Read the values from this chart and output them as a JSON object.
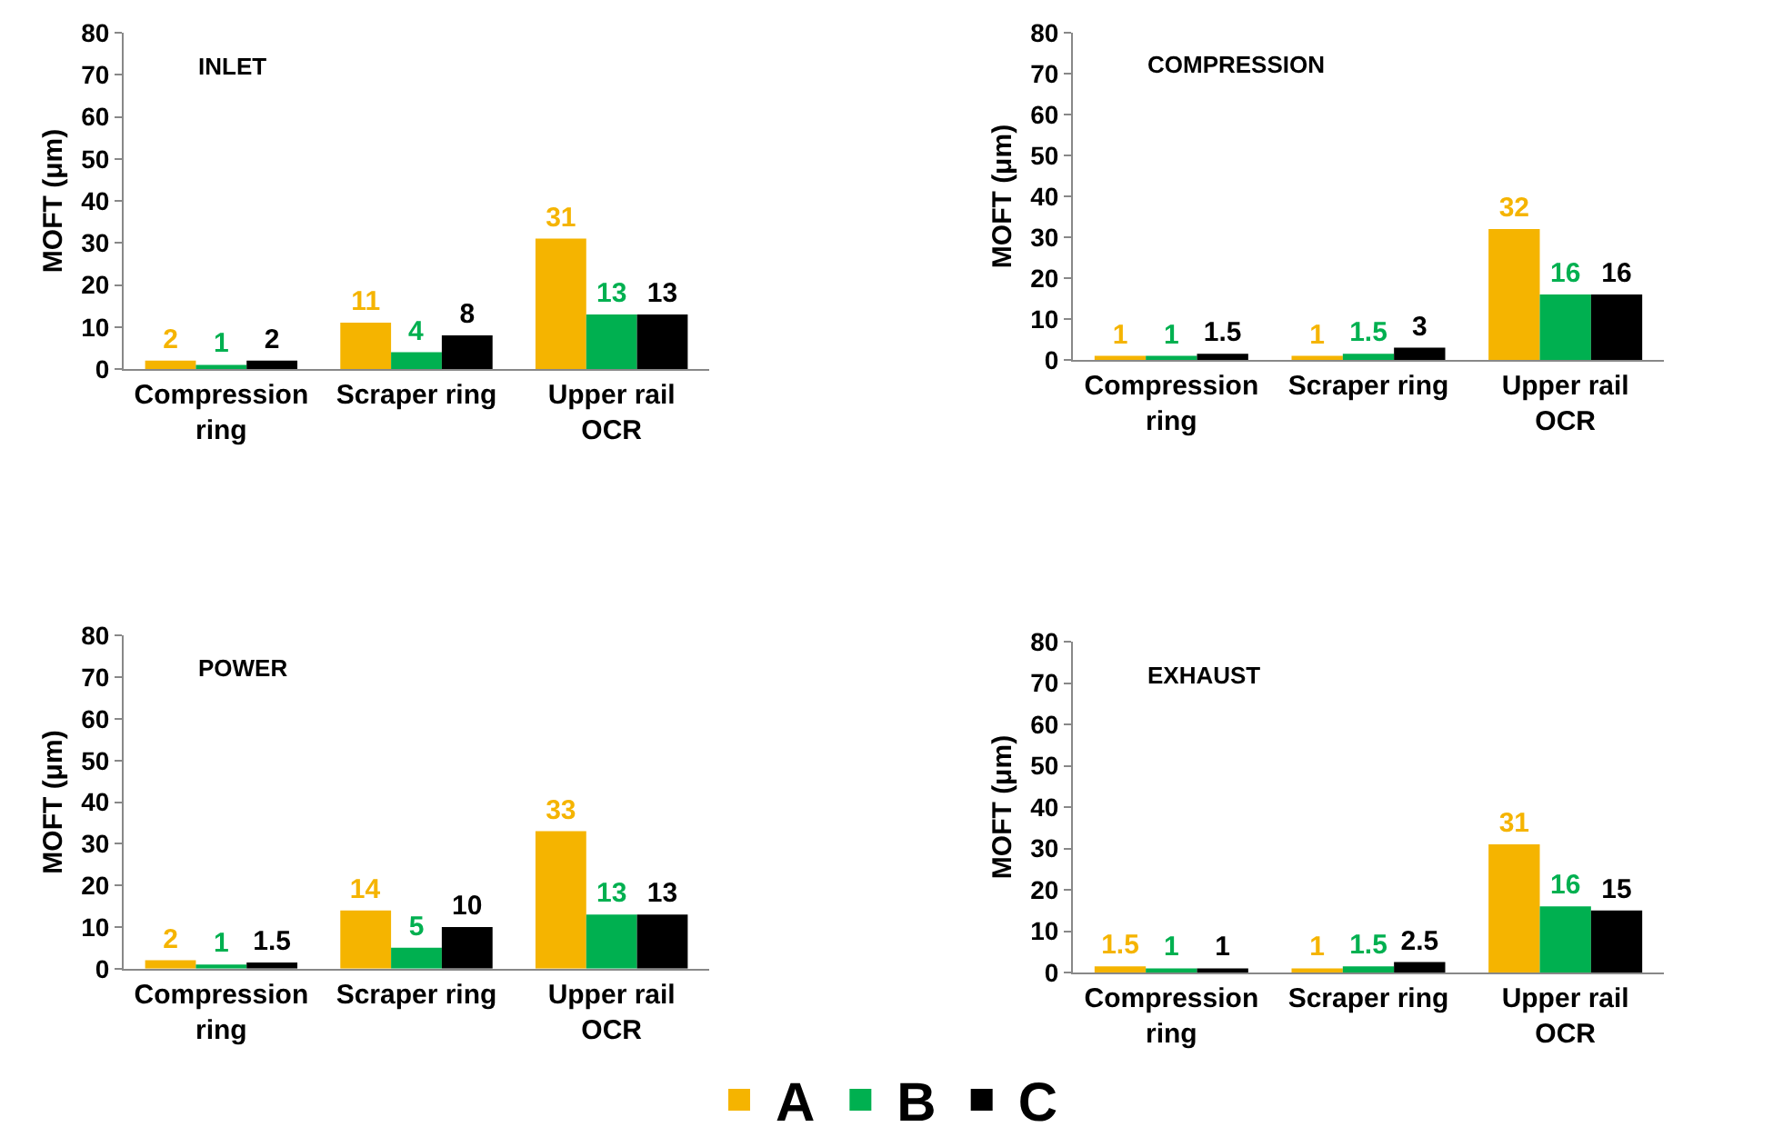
{
  "chart_data": [
    {
      "type": "bar",
      "title": "INLET",
      "ylabel": "MOFT (μm)",
      "categories": [
        "Compression ring",
        "Scraper ring",
        "Upper rail OCR"
      ],
      "series": [
        {
          "color": "#f5b400",
          "values": [
            2,
            11,
            31
          ]
        },
        {
          "color": "#00b050",
          "values": [
            1,
            4,
            13
          ]
        },
        {
          "color": "#000000",
          "values": [
            2,
            8,
            13
          ]
        }
      ],
      "ylim": [
        0,
        80
      ],
      "yticks": [
        0,
        10,
        20,
        30,
        40,
        50,
        60,
        70,
        80
      ],
      "grid": false,
      "data_labels": true
    },
    {
      "type": "bar",
      "title": "COMPRESSION",
      "ylabel": "MOFT (μm)",
      "categories": [
        "Compression ring",
        "Scraper ring",
        "Upper rail OCR"
      ],
      "series": [
        {
          "color": "#f5b400",
          "values": [
            1,
            1,
            32
          ]
        },
        {
          "color": "#00b050",
          "values": [
            1,
            1.5,
            16
          ]
        },
        {
          "color": "#000000",
          "values": [
            1.5,
            3,
            16
          ]
        }
      ],
      "ylim": [
        0,
        80
      ],
      "yticks": [
        0,
        10,
        20,
        30,
        40,
        50,
        60,
        70,
        80
      ],
      "grid": false,
      "data_labels": true
    },
    {
      "type": "bar",
      "title": "POWER",
      "ylabel": "MOFT (μm)",
      "categories": [
        "Compression ring",
        "Scraper ring",
        "Upper rail OCR"
      ],
      "series": [
        {
          "name": "A",
          "color": "#f5b400",
          "values": [
            2,
            14,
            33
          ]
        },
        {
          "name": "B",
          "color": "#00b050",
          "values": [
            1,
            5,
            13
          ]
        },
        {
          "name": "C",
          "color": "#000000",
          "values": [
            1.5,
            10,
            13
          ]
        }
      ],
      "ylim": [
        0,
        80
      ],
      "yticks": [
        0,
        10,
        20,
        30,
        40,
        50,
        60,
        70,
        80
      ],
      "grid": false,
      "data_labels": true,
      "legend": "bottom"
    },
    {
      "type": "bar",
      "title": "EXHAUST",
      "ylabel": "MOFT (μm)",
      "categories": [
        "Compression ring",
        "Scraper ring",
        "Upper rail OCR"
      ],
      "series": [
        {
          "color": "#f5b400",
          "values": [
            1.5,
            1,
            31
          ]
        },
        {
          "color": "#00b050",
          "values": [
            1,
            1.5,
            16
          ]
        },
        {
          "color": "#000000",
          "values": [
            1,
            2.5,
            15
          ]
        }
      ],
      "ylim": [
        0,
        80
      ],
      "yticks": [
        0,
        10,
        20,
        30,
        40,
        50,
        60,
        70,
        80
      ],
      "grid": false,
      "data_labels": true
    }
  ]
}
